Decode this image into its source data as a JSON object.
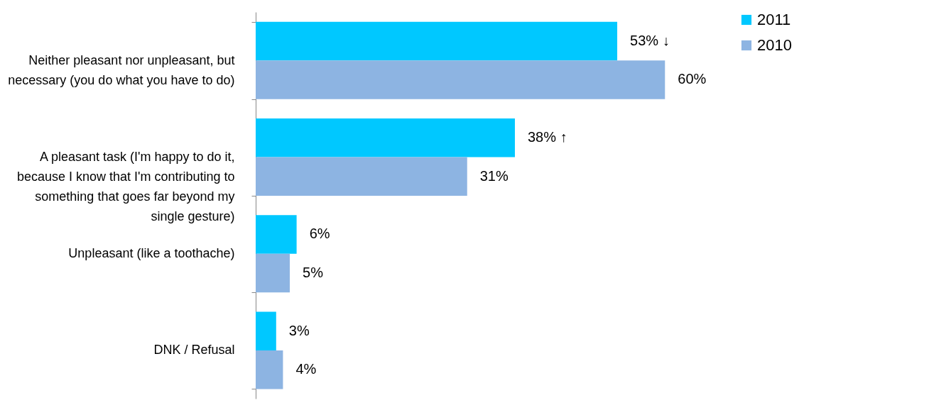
{
  "chart_data": {
    "type": "bar",
    "orientation": "horizontal",
    "categories": [
      "Neither pleasant nor unpleasant, but necessary (you do what you have to do)",
      "A pleasant task (I'm happy to do it, because I know that I'm contributing to something that goes far beyond my single gesture)",
      "Unpleasant (like a toothache)",
      "DNK / Refusal"
    ],
    "series": [
      {
        "name": "2011",
        "color": "#00c8ff",
        "values": [
          53,
          38,
          6,
          3
        ],
        "value_labels": [
          "53% ↓",
          "38%  ↑",
          "6%",
          "3%"
        ]
      },
      {
        "name": "2010",
        "color": "#8db4e2",
        "values": [
          60,
          31,
          5,
          4
        ],
        "value_labels": [
          "60%",
          "31%",
          "5%",
          "4%"
        ]
      }
    ],
    "legend": "right"
  }
}
